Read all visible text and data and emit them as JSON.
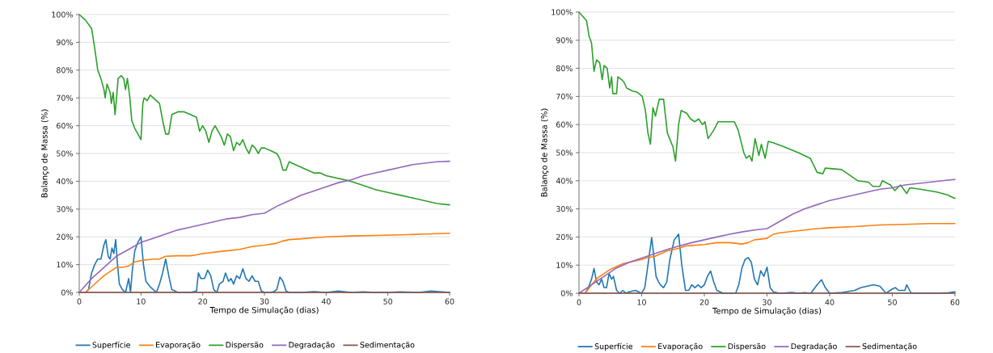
{
  "chart_data": [
    {
      "type": "line",
      "xlabel": "Tempo de Simulação (dias)",
      "ylabel": "Balanço de Massa (%)",
      "xlim": [
        0,
        60
      ],
      "ylim": [
        0,
        100
      ],
      "xticks": [
        0,
        10,
        20,
        30,
        40,
        50,
        60
      ],
      "yticks": [
        {
          "value": 0,
          "label": "0%"
        },
        {
          "value": 10,
          "label": "10%"
        },
        {
          "value": 20,
          "label": "20%"
        },
        {
          "value": 30,
          "label": "30%"
        },
        {
          "value": 40,
          "label": "40%"
        },
        {
          "value": 50,
          "label": "50%"
        },
        {
          "value": 60,
          "label": "60%"
        },
        {
          "value": 70,
          "label": "70%"
        },
        {
          "value": 80,
          "label": "80%"
        },
        {
          "value": 90,
          "label": "90%"
        },
        {
          "value": 100,
          "label": "100%"
        }
      ],
      "grid": "y",
      "legend": "bottom",
      "line_style": "solid",
      "series": [
        {
          "name": "Superfície",
          "color": "#1f77b4",
          "x": [
            0,
            1,
            1.5,
            2,
            2.5,
            3,
            3.5,
            4,
            4.3,
            4.7,
            5,
            5.3,
            5.6,
            5.9,
            6.2,
            6.5,
            7,
            7.5,
            8,
            8.3,
            8.6,
            9,
            9.5,
            10,
            10.4,
            10.8,
            11.5,
            12,
            12.5,
            13,
            13.5,
            14,
            14.5,
            15,
            16,
            17,
            18,
            19,
            19.3,
            19.7,
            20.3,
            20.8,
            21.3,
            21.8,
            22.3,
            22.7,
            23.3,
            23.7,
            24.2,
            24.6,
            25,
            25.5,
            26,
            26.5,
            27,
            27.5,
            28,
            28.5,
            29,
            29.5,
            30,
            31,
            31.5,
            32,
            32.5,
            33,
            33.5,
            34,
            36,
            38,
            40,
            42,
            44,
            46,
            48,
            50,
            52,
            55,
            57,
            60
          ],
          "values": [
            0,
            0,
            1,
            7,
            10,
            12,
            12,
            17,
            19,
            13,
            12,
            16,
            14,
            19,
            10,
            3,
            1,
            0,
            5,
            0,
            8,
            15,
            18,
            20,
            10,
            4,
            2,
            1,
            0,
            3,
            7,
            12,
            6,
            1,
            0,
            0,
            0,
            0.5,
            7,
            5,
            5,
            8,
            6,
            1,
            0,
            3,
            4,
            7,
            4,
            5,
            3,
            6,
            5,
            8.5,
            5,
            4,
            6,
            4,
            4,
            0.5,
            0,
            0,
            0.3,
            1,
            5.5,
            4,
            0.5,
            0,
            0,
            0.3,
            0,
            0.5,
            0,
            0.2,
            0,
            0,
            0.2,
            0,
            0.5,
            0
          ]
        },
        {
          "name": "Evaporação",
          "color": "#ff7f0e",
          "x": [
            0,
            1,
            2,
            3,
            4,
            5,
            6,
            7,
            8,
            9,
            10,
            12,
            13,
            14,
            16,
            18,
            19,
            20,
            22,
            24,
            26,
            28,
            30,
            32,
            33,
            34,
            36,
            38,
            40,
            44,
            48,
            52,
            56,
            60
          ],
          "values": [
            0,
            0,
            2,
            4,
            6,
            7.5,
            9,
            9,
            9.5,
            11,
            11.5,
            12,
            12,
            13,
            13.2,
            13.2,
            13.5,
            14,
            14.5,
            15,
            15.5,
            16.5,
            17,
            17.7,
            18.5,
            19,
            19.3,
            19.7,
            20,
            20.3,
            20.5,
            20.7,
            21,
            21.3
          ]
        },
        {
          "name": "Dispersão",
          "color": "#2ca02c",
          "x": [
            0,
            1,
            2,
            2.5,
            3,
            3.5,
            4,
            4.2,
            4.5,
            5,
            5.2,
            5.5,
            5.8,
            6,
            6.3,
            6.8,
            7.2,
            7.5,
            7.8,
            8.2,
            8.5,
            9,
            9.5,
            10,
            10.3,
            10.5,
            11,
            11.5,
            12,
            12.5,
            13,
            13.5,
            14,
            14.5,
            15,
            16,
            17,
            18,
            19,
            19.5,
            20,
            20.5,
            21,
            21.5,
            22,
            22.5,
            23,
            23.5,
            24,
            24.5,
            25,
            25.5,
            26,
            26.5,
            27,
            27.5,
            28,
            28.5,
            29,
            29.5,
            30,
            31,
            32,
            32.5,
            33,
            33.5,
            34,
            35,
            36,
            37,
            38,
            39,
            40,
            42,
            44,
            46,
            48,
            50,
            52,
            54,
            56,
            58,
            60
          ],
          "values": [
            100,
            98,
            95,
            88,
            80,
            77,
            73,
            70,
            75,
            72,
            68,
            72,
            64,
            69,
            77,
            78,
            77,
            73,
            77,
            70,
            62,
            59,
            57,
            55,
            68,
            70,
            69,
            71,
            70,
            69,
            68,
            62,
            57,
            57,
            64,
            65,
            65,
            64,
            63,
            58,
            60,
            58,
            54,
            58,
            60,
            58,
            56,
            53,
            57,
            56,
            51,
            54,
            53,
            55,
            52,
            50,
            53,
            52,
            50,
            52,
            52,
            51,
            50,
            48,
            44,
            44,
            47,
            46,
            45,
            44,
            43,
            43,
            42,
            41,
            40,
            38.5,
            37,
            36,
            35,
            34,
            33,
            32,
            31.5
          ]
        },
        {
          "name": "Degradação",
          "color": "#9467bd",
          "x": [
            0,
            2,
            4,
            6,
            8,
            10,
            12,
            14,
            16,
            18,
            20,
            22,
            24,
            26,
            28,
            30,
            32,
            34,
            36,
            38,
            40,
            42,
            44,
            46,
            48,
            50,
            52,
            54,
            56,
            58,
            60
          ],
          "values": [
            0,
            5,
            9,
            13,
            15.5,
            18,
            19.5,
            21,
            22.5,
            23.5,
            24.5,
            25.5,
            26.5,
            27,
            28,
            28.5,
            31,
            33,
            35,
            36.5,
            38,
            39.5,
            40.5,
            42,
            43,
            44,
            45,
            46,
            46.5,
            47,
            47.2
          ]
        },
        {
          "name": "Sedimentação",
          "color": "#8c564b",
          "x": [
            0,
            60
          ],
          "values": [
            0,
            0
          ]
        }
      ]
    },
    {
      "type": "line",
      "xlabel": "Tempo de Simulação (dias)",
      "ylabel": "Balanço de Massa (%)",
      "xlim": [
        0,
        60
      ],
      "ylim": [
        0,
        100
      ],
      "xticks": [
        0,
        10,
        20,
        30,
        40,
        50,
        60
      ],
      "yticks": [
        {
          "value": 0,
          "label": "0%"
        },
        {
          "value": 10,
          "label": "10%"
        },
        {
          "value": 20,
          "label": "20%"
        },
        {
          "value": 30,
          "label": "30%"
        },
        {
          "value": 40,
          "label": "40%"
        },
        {
          "value": 50,
          "label": "50%"
        },
        {
          "value": 60,
          "label": "60%"
        },
        {
          "value": 70,
          "label": "70%"
        },
        {
          "value": 80,
          "label": "80%"
        },
        {
          "value": 90,
          "label": "90%"
        },
        {
          "value": 100,
          "label": "100%"
        }
      ],
      "grid": "y",
      "legend": "bottom",
      "line_style": "solid",
      "series": [
        {
          "name": "Superfície",
          "color": "#1f77b4",
          "x": [
            0,
            1,
            1.5,
            2,
            2.4,
            2.8,
            3.2,
            3.6,
            4,
            4.4,
            4.8,
            5.2,
            5.5,
            6,
            6.5,
            7,
            7.5,
            8,
            9,
            10,
            10.5,
            11,
            11.6,
            12,
            12.3,
            12.7,
            13,
            13.5,
            14,
            14.5,
            15.2,
            15.9,
            16.4,
            17,
            17.5,
            18,
            18.5,
            19,
            19.5,
            20,
            20.5,
            21,
            21.5,
            22,
            23,
            24,
            25,
            25.5,
            26,
            26.5,
            27,
            27.5,
            28,
            28.5,
            29,
            29.5,
            30,
            30.5,
            31,
            32,
            34,
            35,
            36,
            37,
            38,
            38.7,
            39.3,
            40,
            42,
            44,
            45,
            46,
            47,
            48,
            49,
            50,
            50.5,
            51,
            52,
            52.3,
            53,
            55,
            57,
            59,
            60
          ],
          "values": [
            0,
            0,
            2,
            5,
            8.8,
            4,
            3,
            5,
            2,
            2,
            7,
            5,
            6,
            1,
            0,
            1,
            0,
            0.5,
            1,
            0,
            2,
            10,
            19.8,
            12,
            6,
            4,
            3,
            2,
            4,
            12,
            19,
            21,
            10,
            1,
            1,
            3,
            2,
            3,
            2,
            3,
            6,
            7.9,
            4,
            1,
            0,
            0,
            0,
            3,
            9,
            12,
            12.7,
            11,
            5,
            3,
            8,
            6,
            9.3,
            2,
            0.5,
            0,
            0.3,
            0,
            0.2,
            0,
            3,
            4.8,
            2,
            0,
            0.3,
            1,
            2,
            2.5,
            3,
            2.5,
            0,
            1.5,
            2,
            1,
            1,
            3,
            0,
            0,
            0,
            0.2,
            0.5
          ]
        },
        {
          "name": "Evaporação",
          "color": "#ff7f0e",
          "x": [
            0,
            1,
            2,
            3,
            4,
            5,
            6,
            7,
            8,
            9,
            10,
            11,
            12,
            13,
            14,
            15,
            16,
            17,
            18,
            20,
            22,
            24,
            26,
            27,
            28,
            30,
            31,
            32,
            34,
            36,
            38,
            40,
            44,
            48,
            52,
            56,
            60
          ],
          "values": [
            0,
            0,
            3,
            5.5,
            7,
            8.5,
            9.5,
            10.5,
            11,
            11.5,
            12,
            12.7,
            13,
            14,
            15,
            15.5,
            16,
            16.8,
            17,
            17.3,
            18,
            18,
            17.5,
            18,
            19,
            19.5,
            21,
            21.5,
            22,
            22.5,
            23,
            23.3,
            23.7,
            24.3,
            24.5,
            24.8,
            24.8
          ]
        },
        {
          "name": "Dispersão",
          "color": "#2ca02c",
          "x": [
            0,
            1.2,
            1.6,
            2,
            2.4,
            2.8,
            3.3,
            3.7,
            4,
            4.5,
            4.9,
            5.2,
            5.4,
            6,
            6.2,
            6.8,
            7.2,
            7.6,
            8.5,
            9.3,
            10.1,
            10.6,
            11,
            11.4,
            11.8,
            12.2,
            12.8,
            13.5,
            14.1,
            15,
            15.4,
            15.9,
            16.3,
            17.2,
            17.8,
            18.5,
            19.1,
            19.7,
            20.1,
            20.6,
            21.5,
            22.2,
            24.8,
            25.4,
            26.3,
            26.7,
            27.2,
            27.6,
            28.1,
            28.7,
            29.1,
            29.7,
            30.2,
            31,
            32.8,
            35,
            36.9,
            38,
            38.9,
            39.3,
            41.9,
            43.2,
            44.5,
            46.2,
            46.9,
            48,
            48.4,
            49.7,
            50.4,
            51.3,
            52.3,
            52.8,
            54.5,
            57.1,
            58.8,
            59.7,
            60
          ],
          "values": [
            100,
            97,
            91.5,
            89,
            79,
            83,
            82,
            76,
            81,
            80,
            73,
            77,
            71,
            71,
            77,
            76,
            75,
            73,
            72,
            71.5,
            70,
            65,
            57,
            53,
            66,
            63,
            69,
            69,
            57,
            52,
            47,
            60,
            65,
            64,
            62,
            61,
            62,
            60,
            61,
            55,
            58,
            61,
            61,
            58,
            50,
            48,
            49,
            47,
            55,
            49,
            53,
            48,
            54,
            53.5,
            52,
            50,
            48,
            43,
            42.5,
            44.5,
            44,
            42,
            40,
            39.5,
            38,
            38,
            40,
            38.5,
            36.5,
            38.5,
            35.5,
            37.5,
            37,
            36,
            35,
            34,
            33.8
          ]
        },
        {
          "name": "Degradação",
          "color": "#9467bd",
          "x": [
            0,
            2,
            4,
            6,
            8,
            10,
            12,
            14,
            16,
            18,
            20,
            22,
            24,
            26,
            28,
            30,
            32,
            34,
            36,
            38,
            40,
            42,
            44,
            46,
            48,
            50,
            52,
            54,
            56,
            58,
            60
          ],
          "values": [
            0,
            3,
            6,
            9,
            11,
            12.5,
            14,
            15.5,
            16.8,
            18,
            19,
            20,
            21,
            21.8,
            22.5,
            23,
            25.5,
            28,
            30,
            31.5,
            33,
            34,
            35,
            36,
            37,
            37.5,
            38.5,
            39,
            39.5,
            40,
            40.5
          ]
        },
        {
          "name": "Sedimentação",
          "color": "#8c564b",
          "x": [
            0,
            60
          ],
          "values": [
            0,
            0
          ]
        }
      ]
    }
  ]
}
